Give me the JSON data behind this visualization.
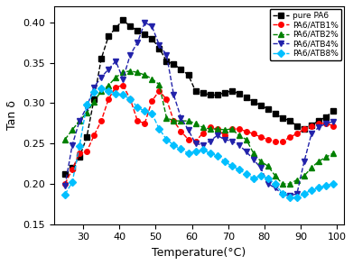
{
  "title": "",
  "xlabel": "Temperature(°C)",
  "ylabel": "Tan δ",
  "xlim": [
    22,
    102
  ],
  "ylim": [
    0.15,
    0.42
  ],
  "yticks": [
    0.15,
    0.2,
    0.25,
    0.3,
    0.35,
    0.4
  ],
  "xticks": [
    30,
    40,
    50,
    60,
    70,
    80,
    90,
    100
  ],
  "series": [
    {
      "label": "pure PA6",
      "color": "black",
      "marker": "s",
      "linestyle": "--",
      "x": [
        25,
        27,
        29,
        31,
        33,
        35,
        37,
        39,
        41,
        43,
        45,
        47,
        49,
        51,
        53,
        55,
        57,
        59,
        61,
        63,
        65,
        67,
        69,
        71,
        73,
        75,
        77,
        79,
        81,
        83,
        85,
        87,
        89,
        91,
        93,
        95,
        97,
        99
      ],
      "y": [
        0.212,
        0.22,
        0.233,
        0.258,
        0.305,
        0.355,
        0.383,
        0.393,
        0.403,
        0.395,
        0.39,
        0.385,
        0.38,
        0.368,
        0.352,
        0.348,
        0.342,
        0.335,
        0.315,
        0.313,
        0.31,
        0.31,
        0.313,
        0.315,
        0.312,
        0.307,
        0.302,
        0.297,
        0.293,
        0.287,
        0.282,
        0.278,
        0.272,
        0.268,
        0.273,
        0.278,
        0.283,
        0.29
      ]
    },
    {
      "label": "PA6/ATB1%",
      "color": "red",
      "marker": "o",
      "linestyle": "--",
      "x": [
        25,
        27,
        29,
        31,
        33,
        35,
        37,
        39,
        41,
        43,
        45,
        47,
        49,
        51,
        53,
        55,
        57,
        59,
        61,
        63,
        65,
        67,
        69,
        71,
        73,
        75,
        77,
        79,
        81,
        83,
        85,
        87,
        89,
        91,
        93,
        95,
        97,
        99
      ],
      "y": [
        0.2,
        0.218,
        0.238,
        0.24,
        0.26,
        0.278,
        0.305,
        0.32,
        0.322,
        0.305,
        0.278,
        0.275,
        0.303,
        0.315,
        0.305,
        0.278,
        0.265,
        0.255,
        0.252,
        0.263,
        0.27,
        0.268,
        0.26,
        0.268,
        0.268,
        0.265,
        0.262,
        0.258,
        0.255,
        0.253,
        0.252,
        0.258,
        0.262,
        0.268,
        0.272,
        0.275,
        0.275,
        0.272
      ]
    },
    {
      "label": "PA6/ATB2%",
      "color": "green",
      "marker": "^",
      "linestyle": "--",
      "x": [
        25,
        27,
        29,
        31,
        33,
        35,
        37,
        39,
        41,
        43,
        45,
        47,
        49,
        51,
        53,
        55,
        57,
        59,
        61,
        63,
        65,
        67,
        69,
        71,
        73,
        75,
        77,
        79,
        81,
        83,
        85,
        87,
        89,
        91,
        93,
        95,
        97,
        99
      ],
      "y": [
        0.255,
        0.267,
        0.278,
        0.288,
        0.302,
        0.315,
        0.322,
        0.332,
        0.338,
        0.34,
        0.338,
        0.335,
        0.33,
        0.323,
        0.282,
        0.278,
        0.278,
        0.278,
        0.275,
        0.27,
        0.268,
        0.268,
        0.267,
        0.268,
        0.26,
        0.255,
        0.238,
        0.228,
        0.222,
        0.21,
        0.2,
        0.2,
        0.205,
        0.21,
        0.22,
        0.228,
        0.233,
        0.238
      ]
    },
    {
      "label": "PA6/ATB4%",
      "color": "#2222aa",
      "marker": "v",
      "linestyle": "--",
      "x": [
        25,
        27,
        29,
        31,
        33,
        35,
        37,
        39,
        41,
        43,
        45,
        47,
        49,
        51,
        53,
        55,
        57,
        59,
        61,
        63,
        65,
        67,
        69,
        71,
        73,
        75,
        77,
        79,
        81,
        83,
        85,
        87,
        89,
        91,
        93,
        95,
        97,
        99
      ],
      "y": [
        0.198,
        0.248,
        0.278,
        0.295,
        0.32,
        0.332,
        0.342,
        0.352,
        0.33,
        0.36,
        0.375,
        0.4,
        0.395,
        0.372,
        0.36,
        0.31,
        0.282,
        0.267,
        0.25,
        0.248,
        0.253,
        0.26,
        0.255,
        0.253,
        0.248,
        0.24,
        0.23,
        0.22,
        0.2,
        0.195,
        0.187,
        0.185,
        0.188,
        0.228,
        0.262,
        0.27,
        0.275,
        0.277
      ]
    },
    {
      "label": "PA6/ATB8%",
      "color": "#00bfff",
      "marker": "D",
      "linestyle": "--",
      "x": [
        25,
        27,
        29,
        31,
        33,
        35,
        37,
        39,
        41,
        43,
        45,
        47,
        49,
        51,
        53,
        55,
        57,
        59,
        61,
        63,
        65,
        67,
        69,
        71,
        73,
        75,
        77,
        79,
        81,
        83,
        85,
        87,
        89,
        91,
        93,
        95,
        97,
        99
      ],
      "y": [
        0.187,
        0.202,
        0.247,
        0.298,
        0.314,
        0.318,
        0.315,
        0.312,
        0.31,
        0.305,
        0.295,
        0.29,
        0.287,
        0.268,
        0.255,
        0.248,
        0.243,
        0.238,
        0.24,
        0.242,
        0.238,
        0.235,
        0.228,
        0.222,
        0.218,
        0.212,
        0.207,
        0.21,
        0.207,
        0.2,
        0.188,
        0.183,
        0.183,
        0.188,
        0.192,
        0.195,
        0.198,
        0.2
      ]
    }
  ],
  "legend_loc": "upper right",
  "markersize": 4,
  "linewidth": 1.0
}
